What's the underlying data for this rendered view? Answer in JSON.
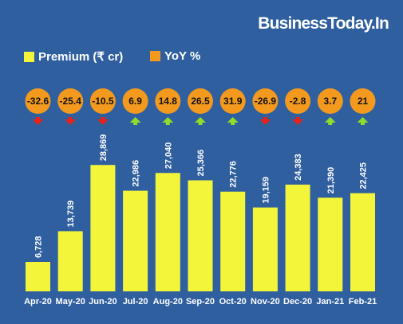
{
  "brand": "BusinessToday.In",
  "colors": {
    "background": "#2f5f9f",
    "bar": "#f3f53b",
    "yoy_circle": "#f39a1e",
    "arrow_up": "#8fdc2a",
    "arrow_down": "#e5231b"
  },
  "chart_data": {
    "type": "bar",
    "legend": {
      "placement": "top-left",
      "entries": [
        "Premium (₹ cr)",
        "YoY %"
      ]
    },
    "categories": [
      "Apr-20",
      "May-20",
      "Jun-20",
      "Jul-20",
      "Aug-20",
      "Sep-20",
      "Oct-20",
      "Nov-20",
      "Dec-20",
      "Jan-21",
      "Feb-21"
    ],
    "series": [
      {
        "name": "Premium (₹ cr)",
        "values": [
          6728,
          13739,
          28869,
          22986,
          27040,
          25366,
          22776,
          19159,
          24383,
          21390,
          22425
        ],
        "labels": [
          "6,728",
          "13,739",
          "28,869",
          "22,986",
          "27,040",
          "25,366",
          "22,776",
          "19,159",
          "24,383",
          "21,390",
          "22,425"
        ]
      },
      {
        "name": "YoY %",
        "values": [
          -32.6,
          -25.4,
          -10.5,
          6.9,
          14.8,
          26.5,
          31.9,
          -26.9,
          -2.8,
          3.7,
          21
        ],
        "labels": [
          "-32.6",
          "-25.4",
          "-10.5",
          "6.9",
          "14.8",
          "26.5",
          "31.9",
          "-26.9",
          "-2.8",
          "3.7",
          "21"
        ]
      }
    ],
    "ylim": [
      0,
      30000
    ],
    "grid": false,
    "title": "",
    "xlabel": "",
    "ylabel": ""
  }
}
